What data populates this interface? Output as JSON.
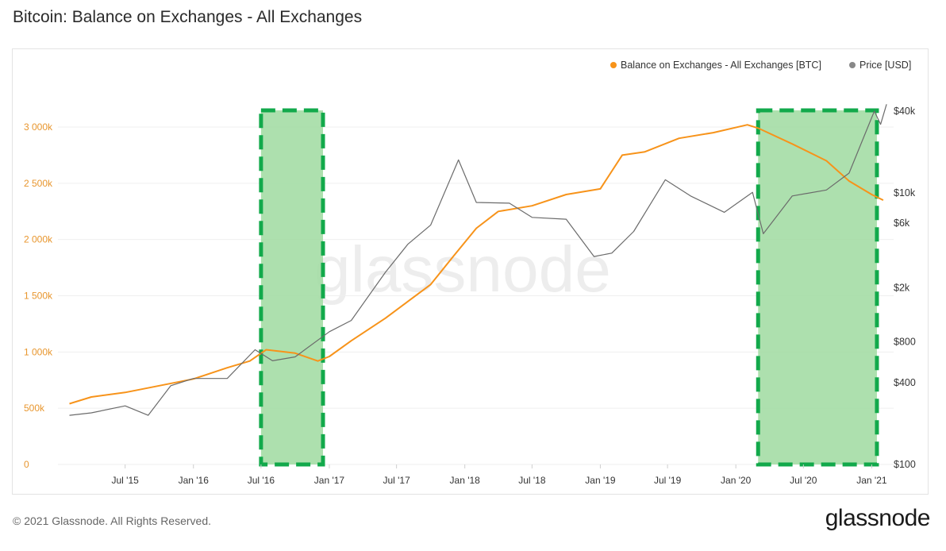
{
  "header": {
    "title": "Bitcoin: Balance on Exchanges - All Exchanges"
  },
  "footer": {
    "copyright": "© 2021 Glassnode. All Rights Reserved.",
    "brand": "glassnode",
    "watermark": "glassnode"
  },
  "colors": {
    "balance": "#f7931a",
    "price": "#6b6b6b",
    "highlight_fill": "#9fdba0",
    "highlight_border": "#12a94b",
    "grid": "#efefef"
  },
  "chart_data": {
    "type": "line",
    "title": "Bitcoin: Balance on Exchanges - All Exchanges",
    "legend_position": "top-right",
    "grid": true,
    "x_ticks": [
      "Jul '15",
      "Jan '16",
      "Jul '16",
      "Jan '17",
      "Jul '17",
      "Jan '18",
      "Jul '18",
      "Jan '19",
      "Jul '19",
      "Jan '20",
      "Jul '20",
      "Jan '21"
    ],
    "y_left": {
      "ticks": [
        "0",
        "500k",
        "1 000k",
        "1 500k",
        "2 000k",
        "2 500k",
        "3 000k"
      ],
      "range": [
        0,
        3000000
      ]
    },
    "y_right": {
      "ticks": [
        "$100",
        "$400",
        "$800",
        "$2k",
        "$6k",
        "$10k",
        "$40k"
      ],
      "scale": "log"
    },
    "series": [
      {
        "name": "Balance on Exchanges - All Exchanges [BTC]",
        "axis": "left",
        "points": [
          [
            "2015-02-01",
            540000
          ],
          [
            "2015-04-01",
            600000
          ],
          [
            "2015-07-01",
            640000
          ],
          [
            "2015-10-01",
            700000
          ],
          [
            "2016-01-01",
            760000
          ],
          [
            "2016-04-01",
            860000
          ],
          [
            "2016-06-01",
            920000
          ],
          [
            "2016-07-15",
            1020000
          ],
          [
            "2016-10-01",
            990000
          ],
          [
            "2016-12-01",
            920000
          ],
          [
            "2017-01-01",
            960000
          ],
          [
            "2017-03-01",
            1100000
          ],
          [
            "2017-06-01",
            1300000
          ],
          [
            "2017-08-01",
            1450000
          ],
          [
            "2017-10-01",
            1600000
          ],
          [
            "2017-12-01",
            1850000
          ],
          [
            "2018-02-01",
            2100000
          ],
          [
            "2018-04-01",
            2250000
          ],
          [
            "2018-07-01",
            2300000
          ],
          [
            "2018-10-01",
            2400000
          ],
          [
            "2019-01-01",
            2450000
          ],
          [
            "2019-03-01",
            2750000
          ],
          [
            "2019-05-01",
            2780000
          ],
          [
            "2019-08-01",
            2900000
          ],
          [
            "2019-11-01",
            2950000
          ],
          [
            "2020-02-01",
            3020000
          ],
          [
            "2020-03-01",
            2990000
          ],
          [
            "2020-06-01",
            2850000
          ],
          [
            "2020-09-01",
            2700000
          ],
          [
            "2020-11-01",
            2520000
          ],
          [
            "2021-01-01",
            2400000
          ],
          [
            "2021-02-01",
            2350000
          ]
        ]
      },
      {
        "name": "Price [USD]",
        "axis": "right",
        "points": [
          [
            "2015-02-01",
            230
          ],
          [
            "2015-04-01",
            240
          ],
          [
            "2015-07-01",
            270
          ],
          [
            "2015-09-01",
            230
          ],
          [
            "2015-11-01",
            380
          ],
          [
            "2016-01-01",
            430
          ],
          [
            "2016-04-01",
            430
          ],
          [
            "2016-06-15",
            700
          ],
          [
            "2016-08-01",
            580
          ],
          [
            "2016-10-01",
            620
          ],
          [
            "2017-01-01",
            950
          ],
          [
            "2017-03-01",
            1150
          ],
          [
            "2017-06-01",
            2600
          ],
          [
            "2017-08-01",
            4200
          ],
          [
            "2017-10-01",
            5800
          ],
          [
            "2017-12-15",
            17500
          ],
          [
            "2018-02-01",
            8500
          ],
          [
            "2018-05-01",
            8400
          ],
          [
            "2018-07-01",
            6600
          ],
          [
            "2018-10-01",
            6400
          ],
          [
            "2018-12-15",
            3400
          ],
          [
            "2019-02-01",
            3600
          ],
          [
            "2019-04-01",
            5200
          ],
          [
            "2019-06-25",
            12500
          ],
          [
            "2019-09-01",
            9500
          ],
          [
            "2019-12-01",
            7200
          ],
          [
            "2020-02-15",
            10100
          ],
          [
            "2020-03-15",
            5000
          ],
          [
            "2020-06-01",
            9500
          ],
          [
            "2020-09-01",
            10500
          ],
          [
            "2020-11-01",
            14000
          ],
          [
            "2021-01-08",
            40000
          ],
          [
            "2021-01-25",
            32000
          ],
          [
            "2021-02-10",
            45000
          ]
        ]
      }
    ],
    "highlights": [
      {
        "start": "2016-07-01",
        "end": "2016-12-15"
      },
      {
        "start": "2020-03-01",
        "end": "2021-01-15"
      }
    ]
  }
}
